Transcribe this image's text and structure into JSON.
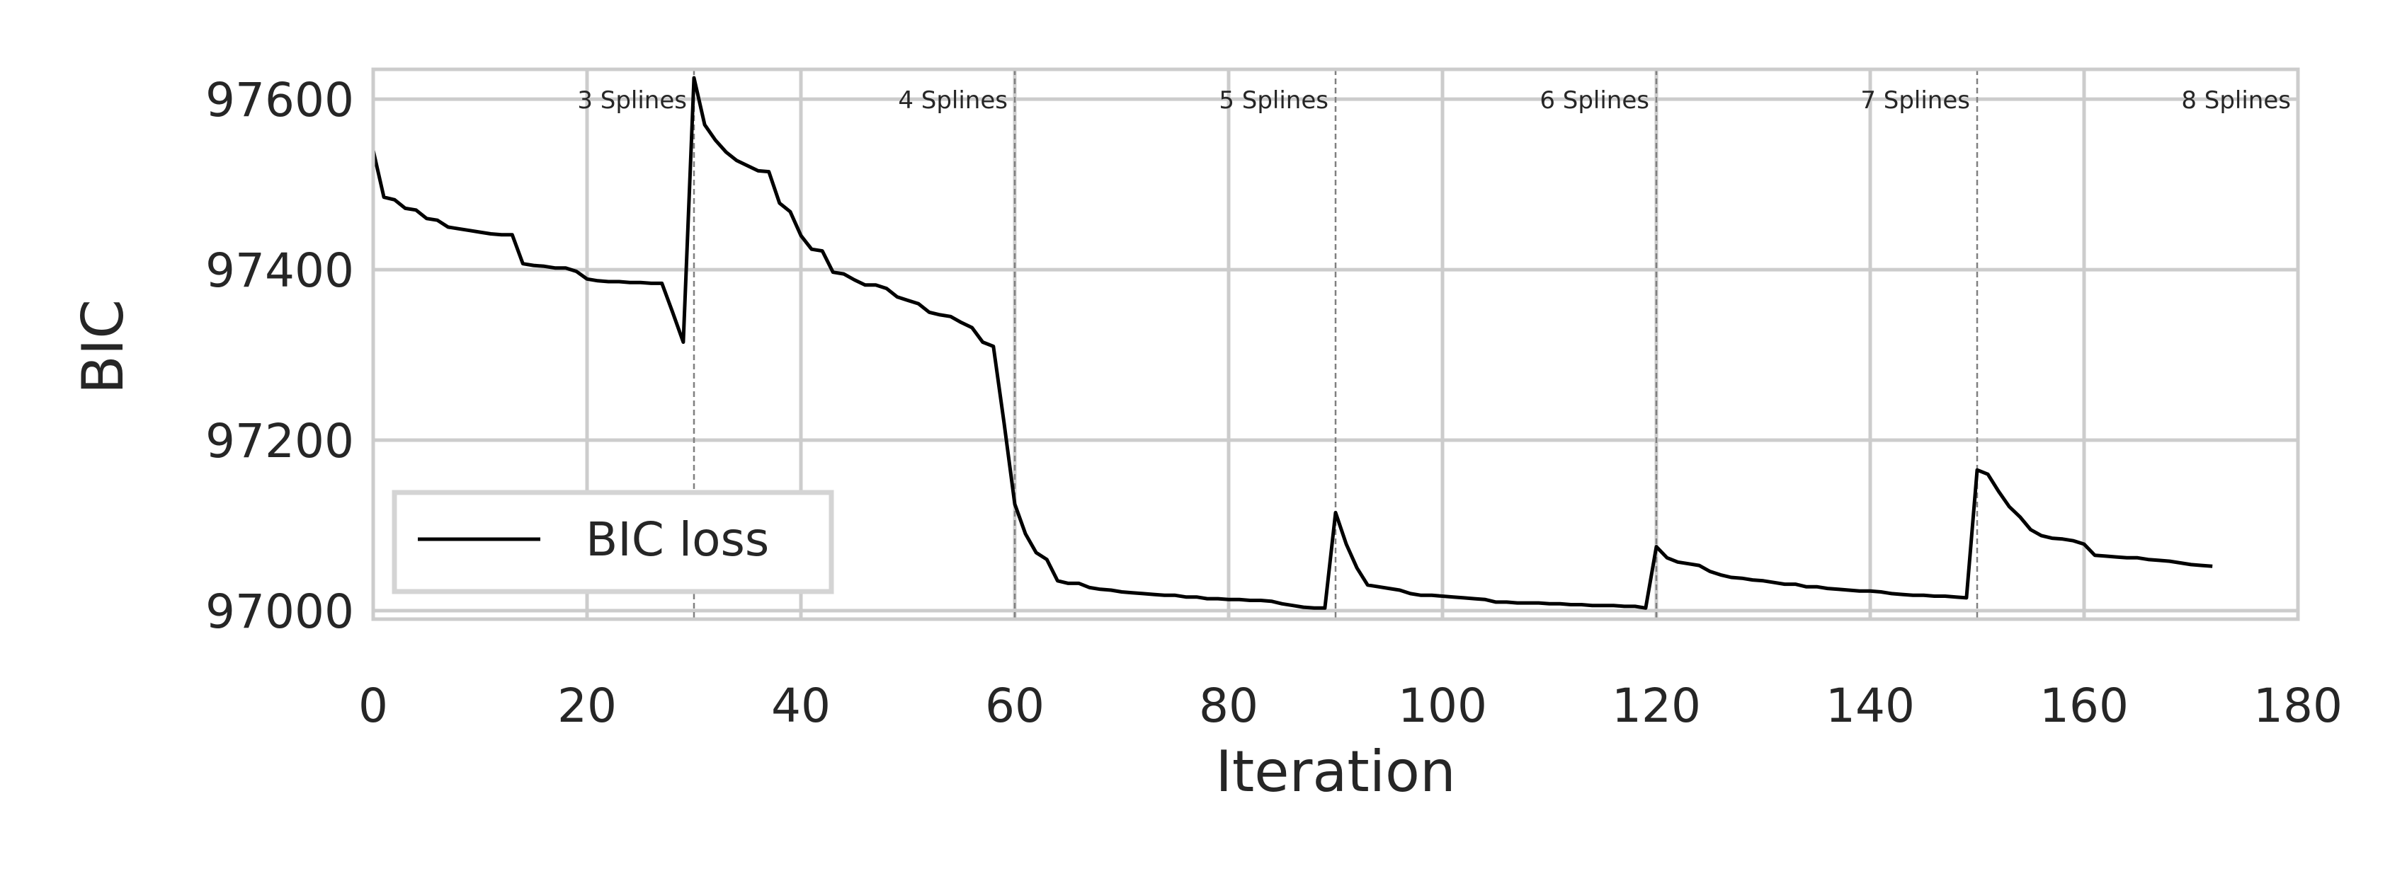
{
  "chart_data": {
    "type": "line",
    "xlabel": "Iteration",
    "ylabel": "BIC",
    "xlim": [
      0,
      180
    ],
    "ylim": [
      96990,
      97635
    ],
    "xticks": [
      0,
      20,
      40,
      60,
      80,
      100,
      120,
      140,
      160,
      180
    ],
    "yticks": [
      97000,
      97200,
      97400,
      97600
    ],
    "grid": true,
    "legend": {
      "placement": "lower-left",
      "entries": [
        "BIC loss"
      ]
    },
    "colors": {
      "line": "#000000",
      "grid": "#cccccc",
      "frame": "#cccccc",
      "vline": "#808080"
    },
    "stage_lines": [
      30,
      60,
      90,
      120,
      150
    ],
    "annotations": [
      {
        "text": "3 Splines",
        "x": 30
      },
      {
        "text": "4 Splines",
        "x": 60
      },
      {
        "text": "5 Splines",
        "x": 90
      },
      {
        "text": "6 Splines",
        "x": 120
      },
      {
        "text": "7 Splines",
        "x": 150
      },
      {
        "text": "8 Splines",
        "x": 180
      }
    ],
    "series": [
      {
        "name": "BIC loss",
        "x": [
          0,
          1,
          2,
          3,
          4,
          5,
          6,
          7,
          8,
          9,
          10,
          11,
          12,
          13,
          14,
          15,
          16,
          17,
          18,
          19,
          20,
          21,
          22,
          23,
          24,
          25,
          26,
          27,
          28,
          29,
          30,
          31,
          32,
          33,
          34,
          35,
          36,
          37,
          38,
          39,
          40,
          41,
          42,
          43,
          44,
          45,
          46,
          47,
          48,
          49,
          50,
          51,
          52,
          53,
          54,
          55,
          56,
          57,
          58,
          59,
          60,
          61,
          62,
          63,
          64,
          65,
          66,
          67,
          68,
          69,
          70,
          71,
          72,
          73,
          74,
          75,
          76,
          77,
          78,
          79,
          80,
          81,
          82,
          83,
          84,
          85,
          86,
          87,
          88,
          89,
          90,
          91,
          92,
          93,
          94,
          95,
          96,
          97,
          98,
          99,
          100,
          101,
          102,
          103,
          104,
          105,
          106,
          107,
          108,
          109,
          110,
          111,
          112,
          113,
          114,
          115,
          116,
          117,
          118,
          119,
          120,
          121,
          122,
          123,
          124,
          125,
          126,
          127,
          128,
          129,
          130,
          131,
          132,
          133,
          134,
          135,
          136,
          137,
          138,
          139,
          140,
          141,
          142,
          143,
          144,
          145,
          146,
          147,
          148,
          149,
          150,
          151,
          152,
          153,
          154,
          155,
          156,
          157,
          158,
          159,
          160,
          161,
          162,
          163,
          164,
          165,
          166,
          167,
          168,
          169,
          170,
          171,
          172
        ],
        "y": [
          97540,
          97485,
          97482,
          97472,
          97470,
          97460,
          97458,
          97450,
          97448,
          97446,
          97444,
          97442,
          97441,
          97441,
          97407,
          97405,
          97404,
          97402,
          97402,
          97398,
          97389,
          97387,
          97386,
          97386,
          97385,
          97385,
          97384,
          97384,
          97350,
          97315,
          97625,
          97570,
          97552,
          97538,
          97528,
          97522,
          97516,
          97515,
          97478,
          97468,
          97440,
          97424,
          97422,
          97397,
          97395,
          97388,
          97382,
          97382,
          97378,
          97368,
          97364,
          97360,
          97350,
          97347,
          97345,
          97338,
          97332,
          97315,
          97310,
          97220,
          97125,
          97090,
          97068,
          97060,
          97035,
          97032,
          97032,
          97027,
          97025,
          97024,
          97022,
          97021,
          97020,
          97019,
          97018,
          97018,
          97016,
          97016,
          97014,
          97014,
          97013,
          97013,
          97012,
          97012,
          97011,
          97008,
          97006,
          97004,
          97003,
          97003,
          97115,
          97078,
          97050,
          97030,
          97028,
          97026,
          97024,
          97020,
          97018,
          97018,
          97017,
          97016,
          97015,
          97014,
          97013,
          97010,
          97010,
          97009,
          97009,
          97009,
          97008,
          97008,
          97007,
          97007,
          97006,
          97006,
          97006,
          97005,
          97005,
          97003,
          97075,
          97062,
          97057,
          97055,
          97053,
          97046,
          97042,
          97039,
          97038,
          97036,
          97035,
          97033,
          97031,
          97031,
          97028,
          97028,
          97026,
          97025,
          97024,
          97023,
          97023,
          97022,
          97020,
          97019,
          97018,
          97018,
          97017,
          97017,
          97016,
          97015,
          97165,
          97160,
          97140,
          97122,
          97110,
          97095,
          97088,
          97085,
          97084,
          97082,
          97078,
          97065,
          97064,
          97063,
          97062,
          97062,
          97060,
          97059,
          97058,
          97056,
          97054,
          97053,
          97052
        ]
      }
    ]
  }
}
